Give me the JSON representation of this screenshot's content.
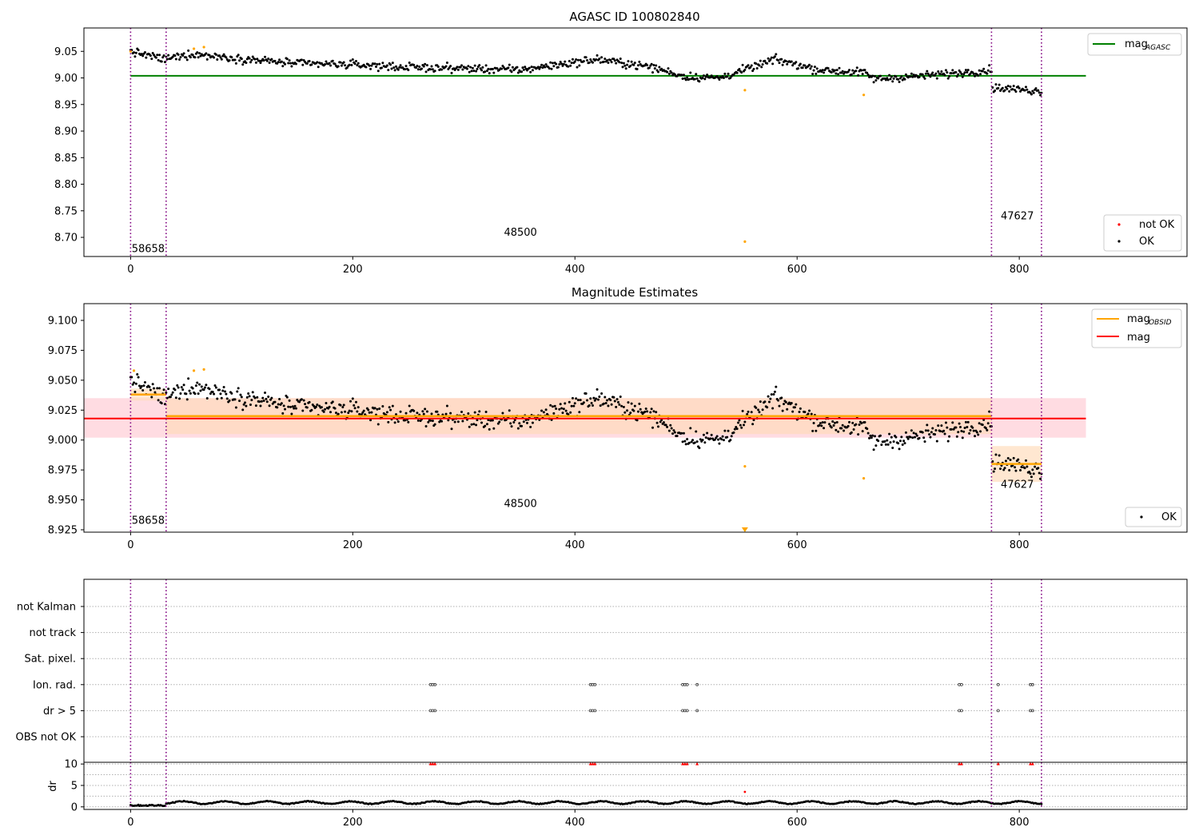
{
  "titles": {
    "panel1": "AGASC ID 100802840",
    "panel2": "Magnitude Estimates"
  },
  "colors": {
    "ok": "#000000",
    "not_ok": "#ff0000",
    "orange": "#ffa500",
    "green": "#008000",
    "red": "#ff0000",
    "purple": "#800080",
    "band_pink": "#ffc0cb",
    "band_orange": "#ffdab9"
  },
  "obsids": [
    {
      "label": "58658",
      "x_start": 0,
      "x_end": 32
    },
    {
      "label": "48500",
      "x_start": 32,
      "x_end": 775
    },
    {
      "label": "47627",
      "x_start": 775,
      "x_end": 820
    }
  ],
  "chart_data": [
    {
      "type": "scatter",
      "title": "AGASC ID 100802840",
      "xlim": [
        -42,
        951
      ],
      "ylim": [
        8.664,
        9.094
      ],
      "xticks": [
        0,
        200,
        400,
        600,
        800
      ],
      "yticks": [
        8.7,
        8.75,
        8.8,
        8.85,
        8.9,
        8.95,
        9.0,
        9.05
      ],
      "ytick_labels": [
        "8.70",
        "8.75",
        "8.80",
        "8.85",
        "8.90",
        "8.95",
        "9.00",
        "9.05"
      ],
      "lines": [
        {
          "name": "mag",
          "sub": "AGASC",
          "y": 9.004,
          "x": [
            0,
            860
          ],
          "color": "#008000"
        }
      ],
      "series": [
        {
          "name": "not OK",
          "color": "#ff0000"
        },
        {
          "name": "OK",
          "color": "#000000"
        }
      ],
      "profile": [
        [
          0,
          9.05
        ],
        [
          30,
          9.035
        ],
        [
          55,
          9.045
        ],
        [
          90,
          9.038
        ],
        [
          150,
          9.027
        ],
        [
          200,
          9.025
        ],
        [
          250,
          9.02
        ],
        [
          300,
          9.018
        ],
        [
          350,
          9.015
        ],
        [
          420,
          9.035
        ],
        [
          470,
          9.02
        ],
        [
          500,
          9.002
        ],
        [
          530,
          9.0
        ],
        [
          560,
          9.02
        ],
        [
          580,
          9.035
        ],
        [
          620,
          9.015
        ],
        [
          660,
          9.01
        ],
        [
          670,
          8.998
        ],
        [
          720,
          9.005
        ],
        [
          775,
          9.015
        ],
        [
          776,
          8.982
        ],
        [
          820,
          8.975
        ]
      ],
      "outliers": [
        {
          "x": 0,
          "y": 9.05
        },
        {
          "x": 57,
          "y": 9.055
        },
        {
          "x": 66,
          "y": 9.058
        },
        {
          "x": 553,
          "y": 8.977
        },
        {
          "x": 553,
          "y": 8.692
        },
        {
          "x": 660,
          "y": 8.968
        }
      ],
      "obsid_label_y": [
        8.672,
        8.703,
        8.734
      ],
      "legend_lines_pos": "top-right",
      "legend_points_pos": "bottom-right"
    },
    {
      "type": "scatter",
      "title": "Magnitude Estimates",
      "xlim": [
        -42,
        951
      ],
      "ylim": [
        8.923,
        9.114
      ],
      "xticks": [
        0,
        200,
        400,
        600,
        800
      ],
      "yticks": [
        8.925,
        8.95,
        8.975,
        9.0,
        9.025,
        9.05,
        9.075,
        9.1
      ],
      "ytick_labels": [
        "8.925",
        "8.950",
        "8.975",
        "9.000",
        "9.025",
        "9.050",
        "9.075",
        "9.100"
      ],
      "mag": {
        "name": "mag",
        "y": 9.018,
        "band": [
          9.002,
          9.035
        ],
        "x": [
          -42,
          860
        ],
        "color": "#ff0000"
      },
      "mag_obsid": [
        {
          "x": [
            0,
            32
          ],
          "y": 9.038,
          "band": [
            9.033,
            9.043
          ]
        },
        {
          "x": [
            32,
            775
          ],
          "y": 9.02,
          "band": [
            9.005,
            9.035
          ]
        },
        {
          "x": [
            775,
            820
          ],
          "y": 8.98,
          "band": [
            8.965,
            8.995
          ]
        }
      ],
      "lines_legend": [
        {
          "name": "mag",
          "sub": "OBSID",
          "color": "#ffa500"
        },
        {
          "name": "mag",
          "sub": "",
          "color": "#ff0000"
        }
      ],
      "series": [
        {
          "name": "OK",
          "color": "#000000"
        }
      ],
      "outliers": [
        {
          "x": 3,
          "y": 9.058
        },
        {
          "x": 57,
          "y": 9.058
        },
        {
          "x": 66,
          "y": 9.059
        },
        {
          "x": 553,
          "y": 8.978
        },
        {
          "x": 660,
          "y": 8.968
        }
      ],
      "arrow": {
        "x": 553,
        "y": 8.925
      },
      "obsid_label_y": [
        8.93,
        8.944,
        8.96
      ],
      "legend_lines_pos": "top-right",
      "legend_points_pos": "bottom-right"
    },
    {
      "type": "scatter",
      "xlim": [
        -42,
        951
      ],
      "xticks": [
        0,
        200,
        400,
        600,
        800
      ],
      "flag_rows": [
        "not Kalman",
        "not track",
        "Sat. pixel.",
        "Ion. rad.",
        "dr > 5",
        "OBS not OK"
      ],
      "flag_points": [
        {
          "row": "Ion. rad.",
          "x": [
            270,
            272,
            274,
            414,
            416,
            418,
            497,
            499,
            501,
            510,
            746,
            748,
            781,
            810,
            812
          ]
        },
        {
          "row": "dr > 5",
          "x": [
            270,
            272,
            274,
            414,
            416,
            418,
            497,
            499,
            501,
            510,
            746,
            748,
            781,
            810,
            812
          ]
        }
      ]
    },
    {
      "type": "scatter",
      "ylabel": "dr",
      "xlim": [
        -42,
        951
      ],
      "ylim": [
        -0.6,
        10.4
      ],
      "xticks": [
        0,
        200,
        400,
        600,
        800
      ],
      "yticks": [
        0,
        5,
        10
      ],
      "ytick_labels": [
        "0",
        "5",
        "10"
      ],
      "dr_high": {
        "x": [
          270,
          272,
          274,
          414,
          416,
          418,
          497,
          499,
          501,
          510,
          746,
          748,
          781,
          810,
          812
        ],
        "y": 10
      },
      "dr_mid": {
        "x": 553,
        "y": 3.5
      }
    }
  ]
}
